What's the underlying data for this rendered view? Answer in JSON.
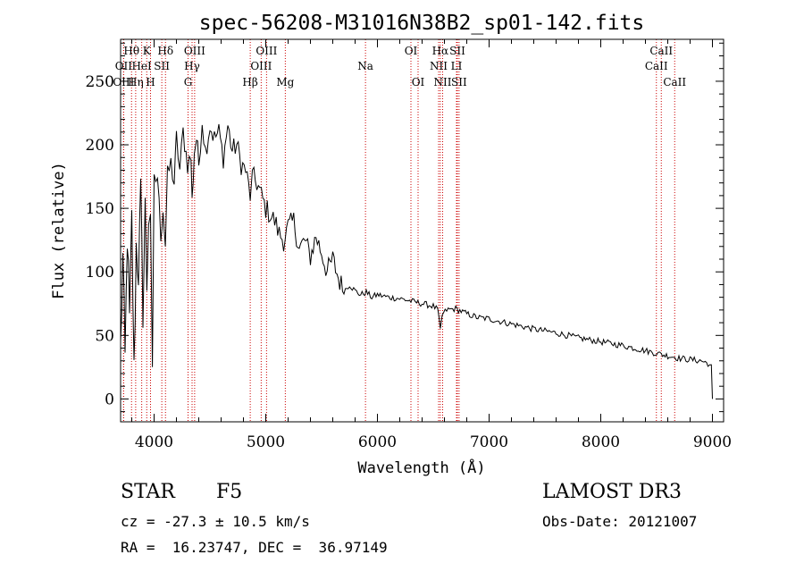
{
  "chart_data": {
    "type": "line",
    "title": "spec-56208-M31016N38B2_sp01-142.fits",
    "xlabel": "Wavelength (Å)",
    "ylabel": "Flux (relative)",
    "xlim": [
      3700,
      9100
    ],
    "ylim": [
      -18,
      283
    ],
    "x_ticks": [
      4000,
      5000,
      6000,
      7000,
      8000,
      9000
    ],
    "x_tick_labels": [
      "4000",
      "5000",
      "6000",
      "7000",
      "8000",
      "9000"
    ],
    "y_ticks": [
      0,
      50,
      100,
      150,
      200,
      250
    ],
    "y_tick_labels": [
      "0",
      "50",
      "100",
      "150",
      "200",
      "250"
    ],
    "grid": false,
    "series": [
      {
        "name": "spectrum",
        "x": [
          3700,
          3720,
          3740,
          3760,
          3780,
          3800,
          3820,
          3840,
          3860,
          3880,
          3900,
          3920,
          3935,
          3950,
          3968,
          3985,
          4000,
          4030,
          4060,
          4080,
          4101,
          4120,
          4150,
          4180,
          4200,
          4230,
          4260,
          4300,
          4330,
          4340,
          4360,
          4380,
          4400,
          4430,
          4460,
          4500,
          4540,
          4580,
          4620,
          4660,
          4700,
          4740,
          4780,
          4820,
          4861,
          4880,
          4920,
          4960,
          5000,
          5040,
          5080,
          5120,
          5160,
          5200,
          5250,
          5300,
          5350,
          5400,
          5450,
          5500,
          5550,
          5600,
          5650,
          5700,
          5750,
          5800,
          5850,
          5900,
          5950,
          6000,
          6100,
          6200,
          6300,
          6400,
          6500,
          6540,
          6563,
          6580,
          6620,
          6700,
          6800,
          6900,
          7000,
          7200,
          7400,
          7600,
          7800,
          8000,
          8200,
          8400,
          8498,
          8542,
          8600,
          8662,
          8700,
          8800,
          8900,
          8960,
          8990,
          9000
        ],
        "y": [
          40,
          110,
          30,
          130,
          60,
          140,
          20,
          120,
          100,
          160,
          70,
          150,
          90,
          145,
          150,
          10,
          170,
          175,
          130,
          150,
          120,
          175,
          185,
          170,
          205,
          180,
          210,
          185,
          190,
          155,
          195,
          205,
          185,
          220,
          195,
          215,
          205,
          210,
          190,
          215,
          195,
          200,
          185,
          180,
          160,
          175,
          170,
          160,
          150,
          145,
          140,
          130,
          125,
          135,
          140,
          118,
          125,
          112,
          128,
          115,
          100,
          110,
          95,
          85,
          90,
          85,
          82,
          84,
          80,
          82,
          80,
          79,
          77,
          75,
          73,
          70,
          54,
          66,
          70,
          71,
          67,
          64,
          63,
          59,
          55,
          52,
          48,
          45,
          42,
          38,
          36,
          35,
          34,
          33,
          32,
          31,
          30,
          28,
          25,
          0
        ]
      }
    ],
    "spectral_lines": [
      {
        "label": "Hθ",
        "wavelength": 3798,
        "row": 1
      },
      {
        "label": "OII",
        "wavelength": 3727,
        "row": 2
      },
      {
        "label": "OIII",
        "wavelength": 3727,
        "row": 3
      },
      {
        "label": "Hη",
        "wavelength": 3835,
        "row": 3
      },
      {
        "label": "K",
        "wavelength": 3934,
        "row": 1
      },
      {
        "label": "HeI",
        "wavelength": 3889,
        "row": 2
      },
      {
        "label": "SII",
        "wavelength": 4069,
        "row": 2
      },
      {
        "label": "H",
        "wavelength": 3968,
        "row": 3
      },
      {
        "label": "Hδ",
        "wavelength": 4102,
        "row": 1
      },
      {
        "label": "OIII",
        "wavelength": 4363,
        "row": 1
      },
      {
        "label": "Hγ",
        "wavelength": 4340,
        "row": 2
      },
      {
        "label": "G",
        "wavelength": 4304,
        "row": 3
      },
      {
        "label": "OIII",
        "wavelength": 5007,
        "row": 1
      },
      {
        "label": "OIII",
        "wavelength": 4959,
        "row": 2
      },
      {
        "label": "Hβ",
        "wavelength": 4861,
        "row": 3
      },
      {
        "label": "Mg",
        "wavelength": 5175,
        "row": 3
      },
      {
        "label": "Na",
        "wavelength": 5893,
        "row": 2
      },
      {
        "label": "OI",
        "wavelength": 6300,
        "row": 1
      },
      {
        "label": "OI",
        "wavelength": 6364,
        "row": 3
      },
      {
        "label": "Hα",
        "wavelength": 6563,
        "row": 1
      },
      {
        "label": "SII",
        "wavelength": 6716,
        "row": 1
      },
      {
        "label": "NII",
        "wavelength": 6548,
        "row": 2
      },
      {
        "label": "LI",
        "wavelength": 6708,
        "row": 2
      },
      {
        "label": "NII",
        "wavelength": 6584,
        "row": 3
      },
      {
        "label": "SII",
        "wavelength": 6731,
        "row": 3
      },
      {
        "label": "CaII",
        "wavelength": 8542,
        "row": 1
      },
      {
        "label": "CaII",
        "wavelength": 8498,
        "row": 2
      },
      {
        "label": "CaII",
        "wavelength": 8662,
        "row": 3
      }
    ],
    "line_style": {
      "color": "#000000",
      "marker_color": "#cc0000"
    }
  },
  "info": {
    "object_class": "STAR",
    "subclass": "F5",
    "survey": "LAMOST DR3",
    "redshift": "cz = -27.3 ± 10.5 km/s",
    "obs_date": "Obs-Date: 20121007",
    "coords": "RA =  16.23747, DEC =  36.97149"
  }
}
